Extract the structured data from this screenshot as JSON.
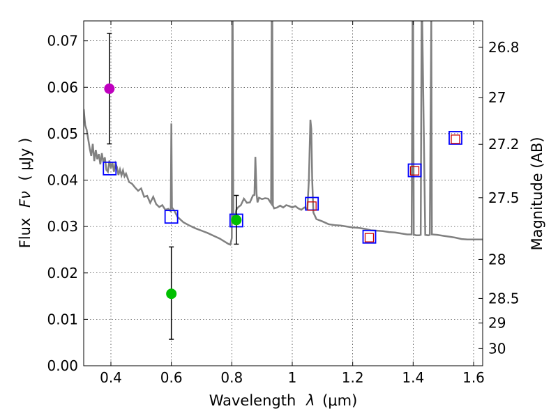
{
  "chart_data": {
    "type": "scatter",
    "xlabel_text": "Wavelength",
    "xlabel_symbol": "λ",
    "xlabel_unit": "(μm)",
    "ylabel_text": "Flux",
    "ylabel_symbol": "Fν",
    "ylabel_unit": "( μJy )",
    "y2label": "Magnitude (AB)",
    "xlim": [
      0.31,
      1.63
    ],
    "ylim": [
      0.0,
      0.0743
    ],
    "grid": true,
    "x_ticks": [
      0.4,
      0.6,
      0.8,
      1.0,
      1.2,
      1.4,
      1.6
    ],
    "x_tick_labels": [
      "0.4",
      "0.6",
      "0.8",
      "1",
      "1.2",
      "1.4",
      "1.6"
    ],
    "y_ticks": [
      0.0,
      0.01,
      0.02,
      0.03,
      0.04,
      0.05,
      0.06,
      0.07
    ],
    "y_tick_labels": [
      "0.00",
      "0.01",
      "0.02",
      "0.03",
      "0.04",
      "0.05",
      "0.06",
      "0.07"
    ],
    "y2_ticks": [
      {
        "flux": 0.0686,
        "label": "26.8"
      },
      {
        "flux": 0.0578,
        "label": "27"
      },
      {
        "flux": 0.0477,
        "label": "27.2"
      },
      {
        "flux": 0.0362,
        "label": "27.5"
      },
      {
        "flux": 0.0229,
        "label": "28"
      },
      {
        "flux": 0.0145,
        "label": "28.5"
      },
      {
        "flux": 0.0092,
        "label": "29"
      },
      {
        "flux": 0.0037,
        "label": "30"
      }
    ],
    "series": [
      {
        "name": "model-spectrum",
        "kind": "line",
        "color": "#808080",
        "x": [
          0.31,
          0.315,
          0.32,
          0.33,
          0.335,
          0.34,
          0.345,
          0.35,
          0.355,
          0.36,
          0.365,
          0.37,
          0.375,
          0.38,
          0.385,
          0.39,
          0.395,
          0.4,
          0.405,
          0.41,
          0.415,
          0.42,
          0.425,
          0.43,
          0.435,
          0.44,
          0.445,
          0.45,
          0.46,
          0.47,
          0.48,
          0.49,
          0.5,
          0.51,
          0.52,
          0.53,
          0.54,
          0.55,
          0.56,
          0.57,
          0.58,
          0.59,
          0.598,
          0.6,
          0.602,
          0.61,
          0.62,
          0.64,
          0.66,
          0.68,
          0.7,
          0.72,
          0.74,
          0.76,
          0.78,
          0.79,
          0.795,
          0.8,
          0.8015,
          0.803,
          0.805,
          0.81,
          0.815,
          0.82,
          0.83,
          0.84,
          0.85,
          0.86,
          0.87,
          0.875,
          0.878,
          0.882,
          0.885,
          0.89,
          0.9,
          0.91,
          0.92,
          0.93,
          0.932,
          0.934,
          0.936,
          0.94,
          0.95,
          0.96,
          0.97,
          0.98,
          0.99,
          1.0,
          1.01,
          1.02,
          1.03,
          1.04,
          1.05,
          1.055,
          1.06,
          1.063,
          1.066,
          1.07,
          1.08,
          1.1,
          1.12,
          1.14,
          1.16,
          1.18,
          1.2,
          1.22,
          1.24,
          1.26,
          1.28,
          1.3,
          1.32,
          1.34,
          1.36,
          1.38,
          1.395,
          1.398,
          1.4,
          1.402,
          1.405,
          1.41,
          1.42,
          1.425,
          1.428,
          1.43,
          1.44,
          1.45,
          1.455,
          1.46,
          1.462,
          1.48,
          1.5,
          1.52,
          1.54,
          1.56,
          1.58,
          1.6,
          1.63
        ],
        "values": [
          0.0553,
          0.0518,
          0.0508,
          0.0468,
          0.0452,
          0.0478,
          0.0441,
          0.0465,
          0.0445,
          0.0456,
          0.0434,
          0.0458,
          0.0438,
          0.0449,
          0.0422,
          0.0418,
          0.0442,
          0.0426,
          0.0439,
          0.0418,
          0.0436,
          0.0428,
          0.0411,
          0.0423,
          0.041,
          0.0421,
          0.0408,
          0.0414,
          0.0396,
          0.0392,
          0.0384,
          0.0377,
          0.0382,
          0.0364,
          0.0366,
          0.0351,
          0.0364,
          0.0348,
          0.0342,
          0.0346,
          0.0336,
          0.0338,
          0.0333,
          0.0522,
          0.0341,
          0.0334,
          0.0321,
          0.0309,
          0.0302,
          0.0296,
          0.0291,
          0.0286,
          0.028,
          0.0274,
          0.0266,
          0.0262,
          0.0261,
          0.0275,
          0.0743,
          0.0743,
          0.032,
          0.0318,
          0.0336,
          0.0341,
          0.0346,
          0.036,
          0.0351,
          0.0352,
          0.0367,
          0.0368,
          0.045,
          0.037,
          0.0352,
          0.0362,
          0.0359,
          0.0361,
          0.036,
          0.035,
          0.0743,
          0.0743,
          0.0345,
          0.0339,
          0.0341,
          0.0345,
          0.0341,
          0.0346,
          0.0344,
          0.0341,
          0.0344,
          0.0339,
          0.0336,
          0.0341,
          0.0338,
          0.04,
          0.053,
          0.051,
          0.04,
          0.033,
          0.0316,
          0.0311,
          0.0305,
          0.0303,
          0.0302,
          0.03,
          0.0298,
          0.0297,
          0.0295,
          0.0292,
          0.0291,
          0.029,
          0.0288,
          0.0287,
          0.0285,
          0.0283,
          0.0283,
          0.0743,
          0.0743,
          0.0282,
          0.0282,
          0.0281,
          0.0281,
          0.0282,
          0.0743,
          0.0743,
          0.0282,
          0.0281,
          0.0282,
          0.0743,
          0.0283,
          0.0282,
          0.028,
          0.0278,
          0.0276,
          0.0273,
          0.0272,
          0.0272,
          0.0272
        ]
      },
      {
        "name": "model-photometry",
        "kind": "open-square",
        "color": "#0000ff",
        "x": [
          0.396,
          0.6,
          0.815,
          1.065,
          1.255,
          1.405,
          1.54
        ],
        "values": [
          0.0425,
          0.0321,
          0.0313,
          0.0349,
          0.0278,
          0.0421,
          0.0491
        ]
      },
      {
        "name": "observed-upper",
        "kind": "open-square-small",
        "color": "#cc0000",
        "x": [
          1.065,
          1.255,
          1.405,
          1.54
        ],
        "values": [
          0.0344,
          0.0276,
          0.042,
          0.0488
        ]
      },
      {
        "name": "observed-magenta",
        "kind": "dot",
        "color": "#bf00bf",
        "x": [
          0.395
        ],
        "values": [
          0.0597
        ],
        "err_low": [
          0.0478
        ],
        "err_high": [
          0.0716
        ]
      },
      {
        "name": "observed-green",
        "kind": "dot",
        "color": "#00bf00",
        "x": [
          0.6,
          0.815
        ],
        "values": [
          0.0155,
          0.0314
        ],
        "err_low": [
          0.0057,
          0.0262
        ],
        "err_high": [
          0.0256,
          0.0367
        ]
      }
    ]
  }
}
